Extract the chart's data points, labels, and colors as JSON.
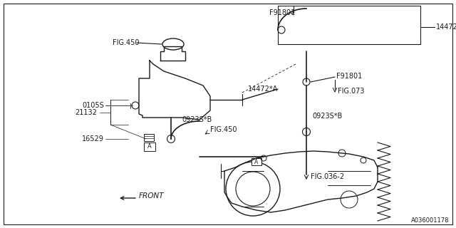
{
  "bg_color": "#ffffff",
  "line_color": "#1a1a1a",
  "watermark": "A036001178",
  "fig_w": 640,
  "fig_h": 320,
  "border": [
    5,
    5,
    635,
    315
  ]
}
